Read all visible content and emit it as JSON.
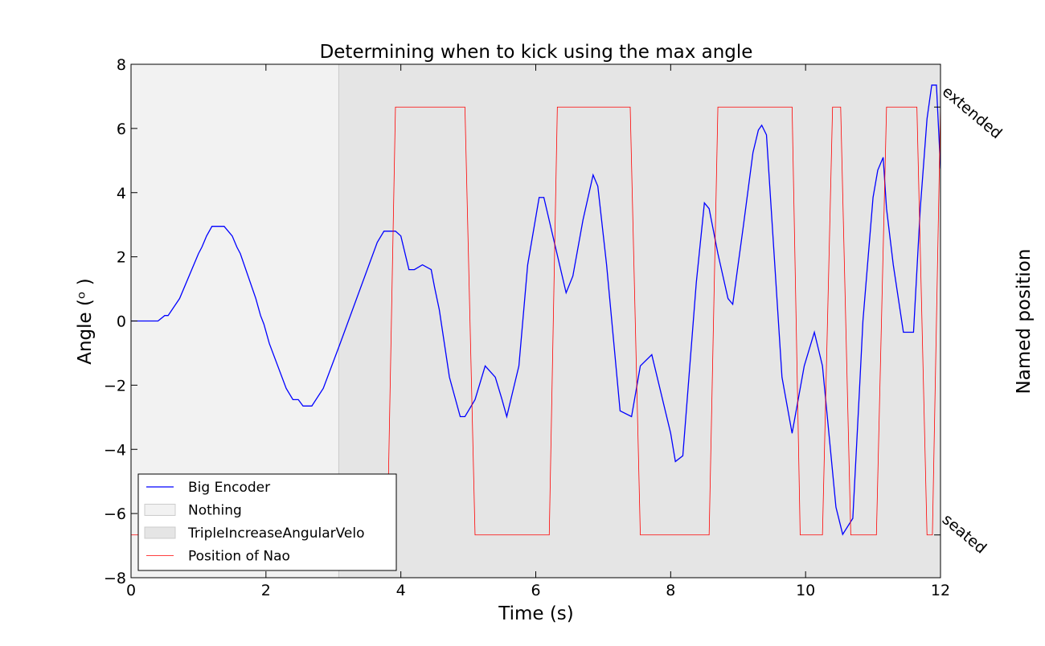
{
  "chart_data": {
    "type": "line",
    "title": "Determining when to kick using the max angle",
    "xlabel": "Time (s)",
    "ylabel": "Angle (ᵒ )",
    "y2label": "Named position",
    "xlim": [
      0,
      12
    ],
    "xticks": [
      0,
      2,
      4,
      6,
      8,
      10,
      12
    ],
    "ylim": [
      -8,
      8
    ],
    "yticks": [
      {
        "value": -8,
        "label": "−8"
      },
      {
        "value": -6,
        "label": "−6"
      },
      {
        "value": -4,
        "label": "−4"
      },
      {
        "value": -2,
        "label": "−2"
      },
      0,
      2,
      4,
      6,
      8
    ],
    "y2lim": [
      -0.1,
      1.1
    ],
    "y2ticks": [
      {
        "value": 0,
        "label": "seated"
      },
      {
        "value": 1,
        "label": "extended"
      }
    ],
    "spans": [
      {
        "name": "Nothing",
        "color": "#f2f2f2",
        "start": 0,
        "end": 3.08
      },
      {
        "name": "TripleIncreaseAngularVelo",
        "color": "#e5e5e5",
        "start": 3.08,
        "end": 12
      }
    ],
    "series": [
      {
        "name": "Big Encoder",
        "color": "#0000ff",
        "x": [
          0,
          0.4,
          0.5,
          0.55,
          0.72,
          1,
          1.05,
          1.12,
          1.2,
          1.38,
          1.5,
          1.57,
          1.62,
          1.85,
          1.92,
          1.97,
          2.05,
          2.3,
          2.4,
          2.48,
          2.55,
          2.68,
          2.85,
          3.1,
          3.65,
          3.75,
          3.92,
          4.0,
          4.12,
          4.2,
          4.32,
          4.45,
          4.5,
          4.57,
          4.72,
          4.88,
          4.95,
          5.1,
          5.25,
          5.4,
          5.5,
          5.57,
          5.75,
          5.88,
          6.05,
          6.12,
          6.45,
          6.55,
          6.7,
          6.85,
          6.92,
          7.05,
          7.25,
          7.42,
          7.55,
          7.72,
          8.0,
          8.07,
          8.18,
          8.38,
          8.5,
          8.57,
          8.7,
          8.85,
          8.92,
          9.08,
          9.22,
          9.3,
          9.35,
          9.42,
          9.65,
          9.8,
          9.92,
          9.98,
          10.13,
          10.25,
          10.45,
          10.55,
          10.7,
          10.8,
          10.85,
          11.0,
          11.07,
          11.15,
          11.2,
          11.3,
          11.45,
          11.6,
          11.7,
          11.8,
          11.87,
          11.94,
          12
        ],
        "values": [
          0,
          0,
          0.17,
          0.17,
          0.7,
          2.1,
          2.3,
          2.65,
          2.95,
          2.95,
          2.65,
          2.3,
          2.1,
          0.7,
          0.17,
          -0.1,
          -0.7,
          -2.1,
          -2.45,
          -2.45,
          -2.65,
          -2.65,
          -2.1,
          -0.7,
          2.45,
          2.8,
          2.8,
          2.65,
          1.6,
          1.6,
          1.75,
          1.6,
          1.05,
          0.35,
          -1.75,
          -2.98,
          -2.98,
          -2.45,
          -1.4,
          -1.75,
          -2.45,
          -2.98,
          -1.4,
          1.75,
          3.85,
          3.85,
          0.88,
          1.4,
          3.15,
          4.55,
          4.2,
          1.75,
          -2.8,
          -2.98,
          -1.4,
          -1.05,
          -3.5,
          -4.38,
          -4.2,
          1.2,
          3.68,
          3.5,
          2.1,
          0.7,
          0.52,
          3.0,
          5.25,
          5.95,
          6.1,
          5.8,
          -1.75,
          -3.5,
          -2.1,
          -1.4,
          -0.35,
          -1.4,
          -5.8,
          -6.65,
          -6.15,
          -2.1,
          0,
          3.85,
          4.7,
          5.1,
          3.5,
          1.75,
          -0.35,
          -0.35,
          3.5,
          6.3,
          7.35,
          7.35,
          4.75
        ]
      },
      {
        "name": "Position of Nao",
        "color": "#ff0000",
        "axis": "y2",
        "x": [
          0,
          3.8,
          3.92,
          4.95,
          5.1,
          6.2,
          6.32,
          7.4,
          7.55,
          8.57,
          8.7,
          9.8,
          9.92,
          10.25,
          10.4,
          10.52,
          10.67,
          11.05,
          11.2,
          11.65,
          11.8,
          11.88,
          12
        ],
        "values": [
          0,
          0,
          1,
          1,
          0,
          0,
          1,
          1,
          0,
          0,
          1,
          1,
          0,
          0,
          1,
          1,
          0,
          0,
          1,
          1,
          0,
          0,
          1
        ]
      }
    ]
  }
}
